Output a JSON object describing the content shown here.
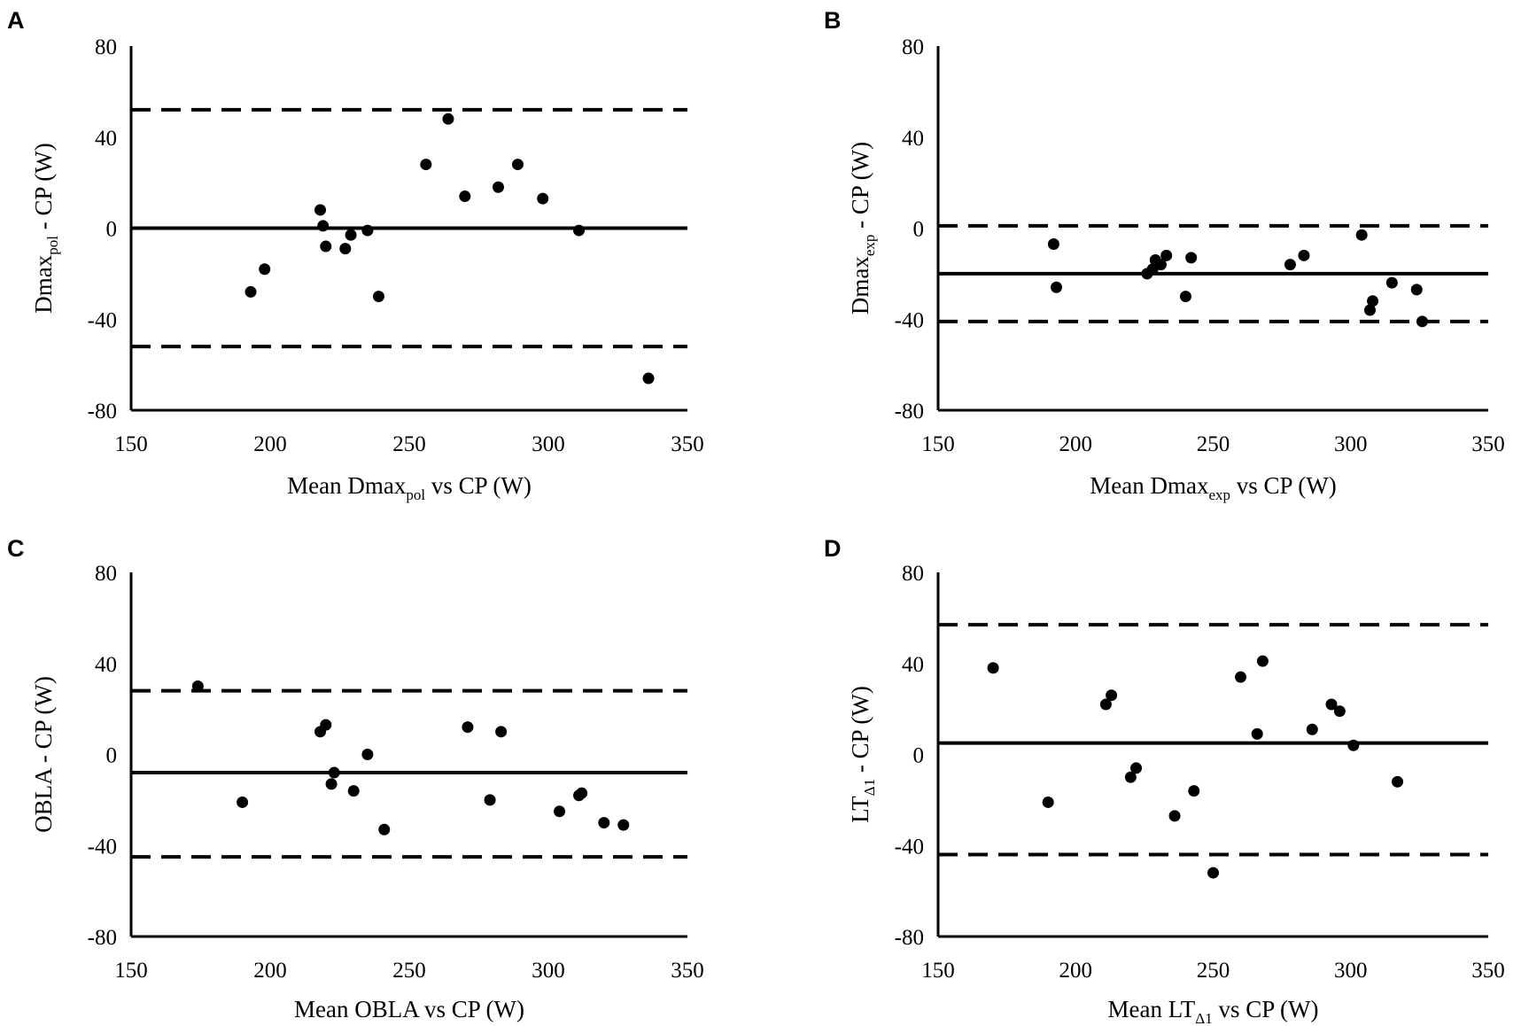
{
  "chart_data": [
    {
      "panel": "A",
      "type": "scatter",
      "title": "",
      "xlabel": "Mean Dmax",
      "xlabel_sub": "pol",
      "xlabel_suffix": " vs CP (W)",
      "ylabel": "Dmax",
      "ylabel_sub": "pol",
      "ylabel_suffix": " - CP (W)",
      "xlim": [
        150,
        350
      ],
      "ylim": [
        -80,
        80
      ],
      "xticks": [
        "150",
        "200",
        "250",
        "300",
        "350"
      ],
      "yticks": [
        "80",
        "40",
        "0",
        "-40",
        "-80"
      ],
      "bias": 0,
      "upper_loa": 52,
      "lower_loa": -52,
      "points": [
        [
          193,
          -28
        ],
        [
          198,
          -18
        ],
        [
          218,
          8
        ],
        [
          219,
          1
        ],
        [
          220,
          -8
        ],
        [
          227,
          -9
        ],
        [
          229,
          -3
        ],
        [
          235,
          -1
        ],
        [
          239,
          -30
        ],
        [
          256,
          28
        ],
        [
          264,
          48
        ],
        [
          270,
          14
        ],
        [
          282,
          18
        ],
        [
          289,
          28
        ],
        [
          298,
          13
        ],
        [
          311,
          -1
        ],
        [
          336,
          -66
        ]
      ]
    },
    {
      "panel": "B",
      "type": "scatter",
      "title": "",
      "xlabel": "Mean Dmax",
      "xlabel_sub": "exp",
      "xlabel_suffix": " vs CP (W)",
      "ylabel": "Dmax",
      "ylabel_sub": "exp",
      "ylabel_suffix": " - CP (W)",
      "xlim": [
        150,
        350
      ],
      "ylim": [
        -80,
        80
      ],
      "xticks": [
        "150",
        "200",
        "250",
        "300",
        "350"
      ],
      "yticks": [
        "80",
        "40",
        "0",
        "-40",
        "-80"
      ],
      "bias": -20,
      "upper_loa": 1,
      "lower_loa": -41,
      "points": [
        [
          192,
          -7
        ],
        [
          193,
          -26
        ],
        [
          226,
          -20
        ],
        [
          228,
          -18
        ],
        [
          229,
          -14
        ],
        [
          231,
          -16
        ],
        [
          233,
          -12
        ],
        [
          240,
          -30
        ],
        [
          242,
          -13
        ],
        [
          278,
          -16
        ],
        [
          283,
          -12
        ],
        [
          304,
          -3
        ],
        [
          307,
          -36
        ],
        [
          308,
          -32
        ],
        [
          315,
          -24
        ],
        [
          324,
          -27
        ],
        [
          326,
          -41
        ]
      ]
    },
    {
      "panel": "C",
      "type": "scatter",
      "title": "",
      "xlabel": "Mean OBLA vs CP (W)",
      "xlabel_sub": "",
      "xlabel_suffix": "",
      "ylabel": "OBLA - CP (W)",
      "ylabel_sub": "",
      "ylabel_suffix": "",
      "xlim": [
        150,
        350
      ],
      "ylim": [
        -80,
        80
      ],
      "xticks": [
        "150",
        "200",
        "250",
        "300",
        "350"
      ],
      "yticks": [
        "80",
        "40",
        "0",
        "-40",
        "-80"
      ],
      "bias": -8,
      "upper_loa": 28,
      "lower_loa": -45,
      "points": [
        [
          174,
          30
        ],
        [
          190,
          -21
        ],
        [
          218,
          10
        ],
        [
          220,
          13
        ],
        [
          222,
          -13
        ],
        [
          223,
          -8
        ],
        [
          230,
          -16
        ],
        [
          235,
          0
        ],
        [
          241,
          -33
        ],
        [
          271,
          12
        ],
        [
          279,
          -20
        ],
        [
          283,
          10
        ],
        [
          304,
          -25
        ],
        [
          311,
          -18
        ],
        [
          312,
          -17
        ],
        [
          320,
          -30
        ],
        [
          327,
          -31
        ]
      ]
    },
    {
      "panel": "D",
      "type": "scatter",
      "title": "",
      "xlabel": "Mean LT",
      "xlabel_sub": "Δ1",
      "xlabel_suffix": " vs CP (W)",
      "ylabel": "LT",
      "ylabel_sub": "Δ1",
      "ylabel_suffix": " - CP (W)",
      "xlim": [
        150,
        350
      ],
      "ylim": [
        -80,
        80
      ],
      "xticks": [
        "150",
        "200",
        "250",
        "300",
        "350"
      ],
      "yticks": [
        "80",
        "40",
        "0",
        "-40",
        "-80"
      ],
      "bias": 5,
      "upper_loa": 57,
      "lower_loa": -44,
      "points": [
        [
          170,
          38
        ],
        [
          190,
          -21
        ],
        [
          211,
          22
        ],
        [
          213,
          26
        ],
        [
          220,
          -10
        ],
        [
          222,
          -6
        ],
        [
          236,
          -27
        ],
        [
          243,
          -16
        ],
        [
          250,
          -52
        ],
        [
          260,
          34
        ],
        [
          266,
          9
        ],
        [
          268,
          41
        ],
        [
          286,
          11
        ],
        [
          293,
          22
        ],
        [
          296,
          19
        ],
        [
          301,
          4
        ],
        [
          317,
          -12
        ]
      ]
    }
  ]
}
